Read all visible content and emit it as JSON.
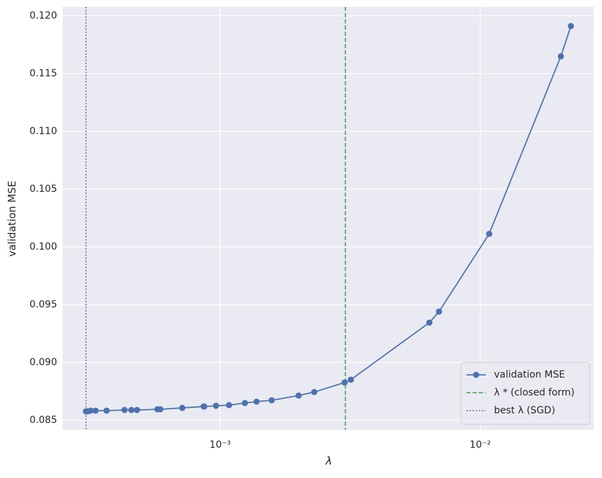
{
  "chart_data": {
    "type": "line",
    "xlabel": "λ",
    "ylabel": "validation MSE",
    "xscale": "log",
    "grid": true,
    "legend": "lower right",
    "xlim": [
      0.000248,
      0.0273
    ],
    "ylim": [
      0.08417,
      0.12077
    ],
    "xticks": [
      {
        "value": 0.001,
        "label": "10⁻³"
      },
      {
        "value": 0.01,
        "label": "10⁻²"
      }
    ],
    "yticks": [
      0.085,
      {
        "value": 0.09,
        "label": "0.090"
      },
      0.095,
      {
        "value": 0.1,
        "label": "0.100"
      },
      0.105,
      {
        "value": 0.11,
        "label": "0.110"
      },
      0.115,
      {
        "value": 0.12,
        "label": "0.120"
      }
    ],
    "x": [
      0.000305,
      0.00031,
      0.000318,
      0.000332,
      0.000366,
      0.000429,
      0.000456,
      0.000479,
      0.000574,
      0.000589,
      0.000715,
      0.000864,
      0.000869,
      0.000964,
      0.001082,
      0.001245,
      0.00138,
      0.001578,
      0.002003,
      0.0023,
      0.00301,
      0.00318,
      0.00637,
      0.00694,
      0.01082,
      0.0204,
      0.0223
    ],
    "series": [
      {
        "name": "validation MSE",
        "color": "#4c72b0",
        "values": [
          0.08577,
          0.08577,
          0.08583,
          0.08583,
          0.08583,
          0.08589,
          0.08589,
          0.08589,
          0.08595,
          0.08595,
          0.08607,
          0.08619,
          0.08619,
          0.08625,
          0.08631,
          0.08649,
          0.08661,
          0.08673,
          0.08714,
          0.08744,
          0.08827,
          0.08851,
          0.09345,
          0.0944,
          0.10113,
          0.11649,
          0.11911
        ]
      }
    ],
    "vlines": [
      {
        "name": "λ *  (closed form)",
        "color": "#55a868",
        "style": "dashed",
        "x": 0.00303
      },
      {
        "name": "best λ (SGD)",
        "color": "#8172b3",
        "style": "dotted",
        "x": 0.000305
      }
    ]
  }
}
